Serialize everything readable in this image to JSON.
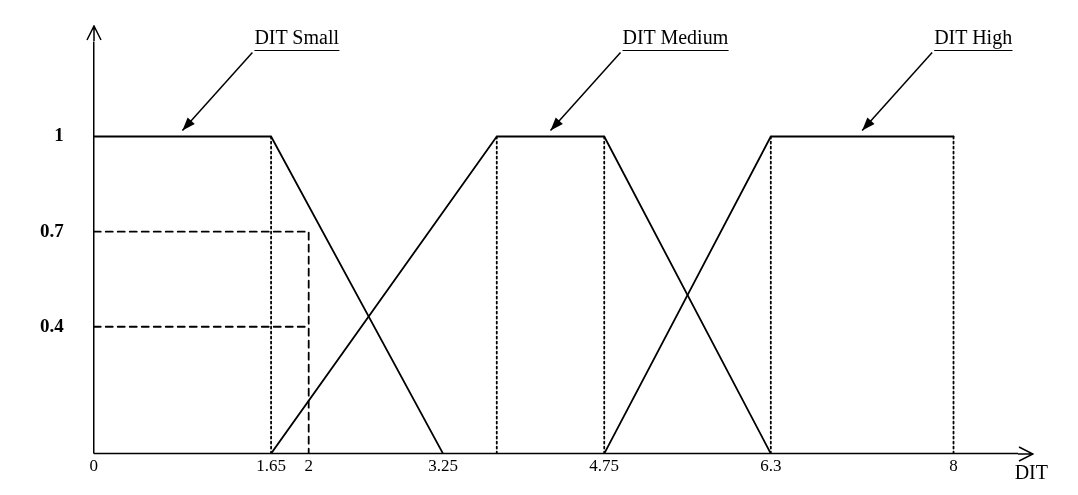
{
  "chart_data": {
    "type": "line",
    "xlabel": "DIT",
    "xlim": [
      0,
      8.6
    ],
    "ylim": [
      0,
      1.3
    ],
    "xticks": [
      0,
      1.65,
      2,
      3.25,
      4.75,
      6.3,
      8
    ],
    "yticks": [
      0.4,
      0.7,
      1
    ],
    "marker": "none",
    "legend": false,
    "grid": false,
    "series": [
      {
        "name": "DIT Small",
        "color": "#000000",
        "line_style": "solid",
        "x": [
          0,
          1.65,
          3.25
        ],
        "values": [
          1,
          1,
          0
        ]
      },
      {
        "name": "DIT Medium",
        "color": "#000000",
        "line_style": "solid",
        "x": [
          1.65,
          3.75,
          4.75,
          6.3
        ],
        "values": [
          0,
          1,
          1,
          0
        ]
      },
      {
        "name": "DIT High",
        "color": "#000000",
        "line_style": "solid",
        "x": [
          4.75,
          6.3,
          8
        ],
        "values": [
          0,
          1,
          1
        ]
      },
      {
        "color": "#000000",
        "line_style": "dotted",
        "x": [
          1.65,
          1.65
        ],
        "values": [
          0,
          1
        ]
      },
      {
        "color": "#000000",
        "line_style": "dotted",
        "x": [
          3.75,
          3.75
        ],
        "values": [
          0,
          1
        ]
      },
      {
        "color": "#000000",
        "line_style": "dotted",
        "x": [
          4.75,
          4.75
        ],
        "values": [
          0,
          1
        ]
      },
      {
        "color": "#000000",
        "line_style": "dotted",
        "x": [
          6.3,
          6.3
        ],
        "values": [
          0,
          1
        ]
      },
      {
        "color": "#000000",
        "line_style": "dotted",
        "x": [
          8,
          8
        ],
        "values": [
          0,
          1
        ]
      },
      {
        "color": "#000000",
        "line_style": "dashed",
        "x": [
          0,
          2,
          2
        ],
        "values": [
          0.7,
          0.7,
          0
        ]
      },
      {
        "color": "#000000",
        "line_style": "dashed",
        "x": [
          0,
          2
        ],
        "values": [
          0.4,
          0.4
        ]
      }
    ]
  }
}
